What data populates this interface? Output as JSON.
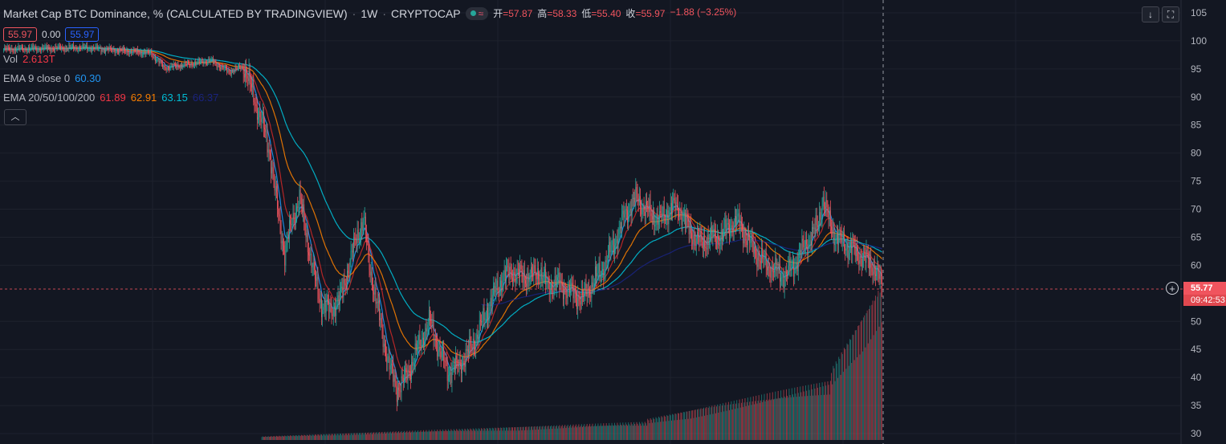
{
  "header": {
    "title": "Market Cap BTC Dominance, % (CALCULATED BY TRADINGVIEW)",
    "sep1": "·",
    "interval": "1W",
    "sep2": "·",
    "exchange": "CRYPTOCAP",
    "ohlc": {
      "open_label": "开",
      "open": "=57.87",
      "high_label": "高",
      "high": "=58.33",
      "low_label": "低",
      "low": "=55.40",
      "close_label": "收",
      "close": "=55.97",
      "change": "−1.88 (−3.25%)"
    }
  },
  "price_row": {
    "bid": "55.97",
    "spread": "0.00",
    "ask": "55.97"
  },
  "vol_row": {
    "label": "Vol",
    "value": "2.613T"
  },
  "ema9_row": {
    "label": "EMA 9 close 0",
    "value": "60.30"
  },
  "ema_row": {
    "label": "EMA 20/50/100/200",
    "ema20": "61.89",
    "ema50": "62.91",
    "ema100": "63.15",
    "ema200": "66.37"
  },
  "price_tag": {
    "value": "55.77",
    "countdown": "09:42:53"
  },
  "colors": {
    "bg": "#131722",
    "up": "#26a69a",
    "down": "#f0545e",
    "grid": "#1e222d",
    "ema9": "#2196f3",
    "ema20": "#c62828",
    "ema50": "#f57c00",
    "ema100": "#00bcd4",
    "ema200": "#1a237e"
  },
  "icons": {
    "collapse": "chevron-up-icon",
    "download": "arrow-down-icon",
    "fullscreen": "fullscreen-icon",
    "plus": "plus-circle-icon"
  },
  "chart_data": {
    "type": "candlestick",
    "title": "Market Cap BTC Dominance, % (CALCULATED BY TRADINGVIEW)",
    "interval": "1W",
    "y_axis": {
      "ticks": [
        105,
        100,
        95,
        90,
        85,
        80,
        75,
        70,
        65,
        60,
        50,
        45,
        40,
        35,
        30
      ],
      "range": [
        30,
        105
      ],
      "position": "right"
    },
    "current_price": 55.77,
    "grid": true,
    "close_anchors": [
      [
        0,
        98.5
      ],
      [
        50,
        98.7
      ],
      [
        90,
        98.8
      ],
      [
        130,
        98.2
      ],
      [
        160,
        97.8
      ],
      [
        175,
        95.2
      ],
      [
        200,
        95.8
      ],
      [
        225,
        96.5
      ],
      [
        245,
        94.5
      ],
      [
        262,
        95.5
      ],
      [
        272,
        90
      ],
      [
        282,
        85
      ],
      [
        290,
        80
      ],
      [
        298,
        70
      ],
      [
        306,
        62
      ],
      [
        314,
        68
      ],
      [
        322,
        72
      ],
      [
        330,
        65
      ],
      [
        338,
        58
      ],
      [
        346,
        53
      ],
      [
        356,
        52
      ],
      [
        366,
        54
      ],
      [
        376,
        60
      ],
      [
        384,
        65
      ],
      [
        392,
        68
      ],
      [
        398,
        60
      ],
      [
        404,
        55
      ],
      [
        412,
        48
      ],
      [
        420,
        42
      ],
      [
        428,
        38
      ],
      [
        438,
        40
      ],
      [
        448,
        44
      ],
      [
        458,
        48
      ],
      [
        464,
        50
      ],
      [
        470,
        47
      ],
      [
        476,
        44
      ],
      [
        484,
        41
      ],
      [
        494,
        42
      ],
      [
        504,
        44
      ],
      [
        514,
        47
      ],
      [
        524,
        51
      ],
      [
        534,
        55
      ],
      [
        544,
        58
      ],
      [
        554,
        59
      ],
      [
        564,
        58
      ],
      [
        574,
        58
      ],
      [
        584,
        59
      ],
      [
        592,
        56
      ],
      [
        600,
        57
      ],
      [
        610,
        56
      ],
      [
        620,
        55
      ],
      [
        630,
        54
      ],
      [
        638,
        56
      ],
      [
        646,
        58
      ],
      [
        654,
        60
      ],
      [
        662,
        63
      ],
      [
        670,
        66
      ],
      [
        676,
        69
      ],
      [
        684,
        71
      ],
      [
        690,
        72
      ],
      [
        698,
        70
      ],
      [
        706,
        69
      ],
      [
        714,
        68
      ],
      [
        720,
        69
      ],
      [
        728,
        70.5
      ],
      [
        736,
        70
      ],
      [
        744,
        67
      ],
      [
        752,
        65
      ],
      [
        760,
        64
      ],
      [
        770,
        65
      ],
      [
        780,
        65
      ],
      [
        790,
        67
      ],
      [
        798,
        68
      ],
      [
        806,
        66
      ],
      [
        812,
        64
      ],
      [
        820,
        62
      ],
      [
        830,
        60
      ],
      [
        840,
        59
      ],
      [
        850,
        58
      ],
      [
        860,
        60
      ],
      [
        870,
        63
      ],
      [
        878,
        65
      ],
      [
        886,
        67
      ],
      [
        892,
        72
      ],
      [
        898,
        68
      ],
      [
        906,
        65
      ],
      [
        914,
        64
      ],
      [
        922,
        63
      ],
      [
        930,
        62
      ],
      [
        938,
        61
      ],
      [
        946,
        60
      ],
      [
        952,
        58
      ],
      [
        956,
        55.97
      ]
    ],
    "ema_series": [
      {
        "name": "EMA 9",
        "value": 60.3
      },
      {
        "name": "EMA 20",
        "value": 61.89
      },
      {
        "name": "EMA 50",
        "value": 62.91
      },
      {
        "name": "EMA 100",
        "value": 63.15
      },
      {
        "name": "EMA 200",
        "value": 66.37
      }
    ],
    "volume": {
      "label": "Vol",
      "last": "2.613T"
    }
  }
}
